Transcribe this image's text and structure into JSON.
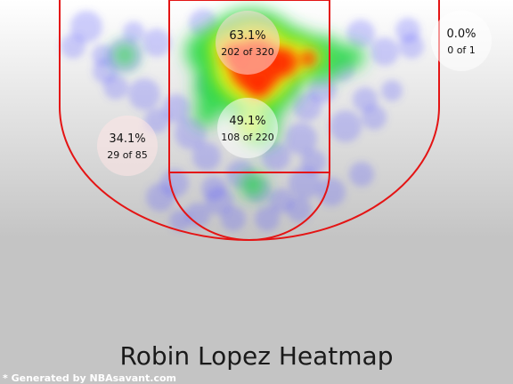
{
  "chart_data": {
    "type": "heatmap",
    "title": "Robin Lopez Heatmap",
    "credit": "* Generated by NBAsavant.com",
    "background": {
      "top": "#ffffff",
      "bottom": "#c4c4c4"
    },
    "court_line_color": "#e41414",
    "heat_colors": [
      "#5a5aff",
      "#2fd94a",
      "#f2f20c",
      "#ff2a00"
    ],
    "zones": [
      {
        "name": "restricted-area",
        "pct": "63.1%",
        "made": 202,
        "attempts": 320,
        "count_text": "202 of 320",
        "bubble": "#ffdada"
      },
      {
        "name": "paint-non-ra",
        "pct": "49.1%",
        "made": 108,
        "attempts": 220,
        "count_text": "108 of 220",
        "bubble": "#ffffff"
      },
      {
        "name": "mid-range-left",
        "pct": "34.1%",
        "made": 29,
        "attempts": 85,
        "count_text": "29 of 85",
        "bubble": "#ffe6e6"
      },
      {
        "name": "above-break-three-right",
        "pct": "0.0%",
        "made": 0,
        "attempts": 1,
        "count_text": "0 of 1",
        "bubble": "#ffffff"
      }
    ]
  }
}
